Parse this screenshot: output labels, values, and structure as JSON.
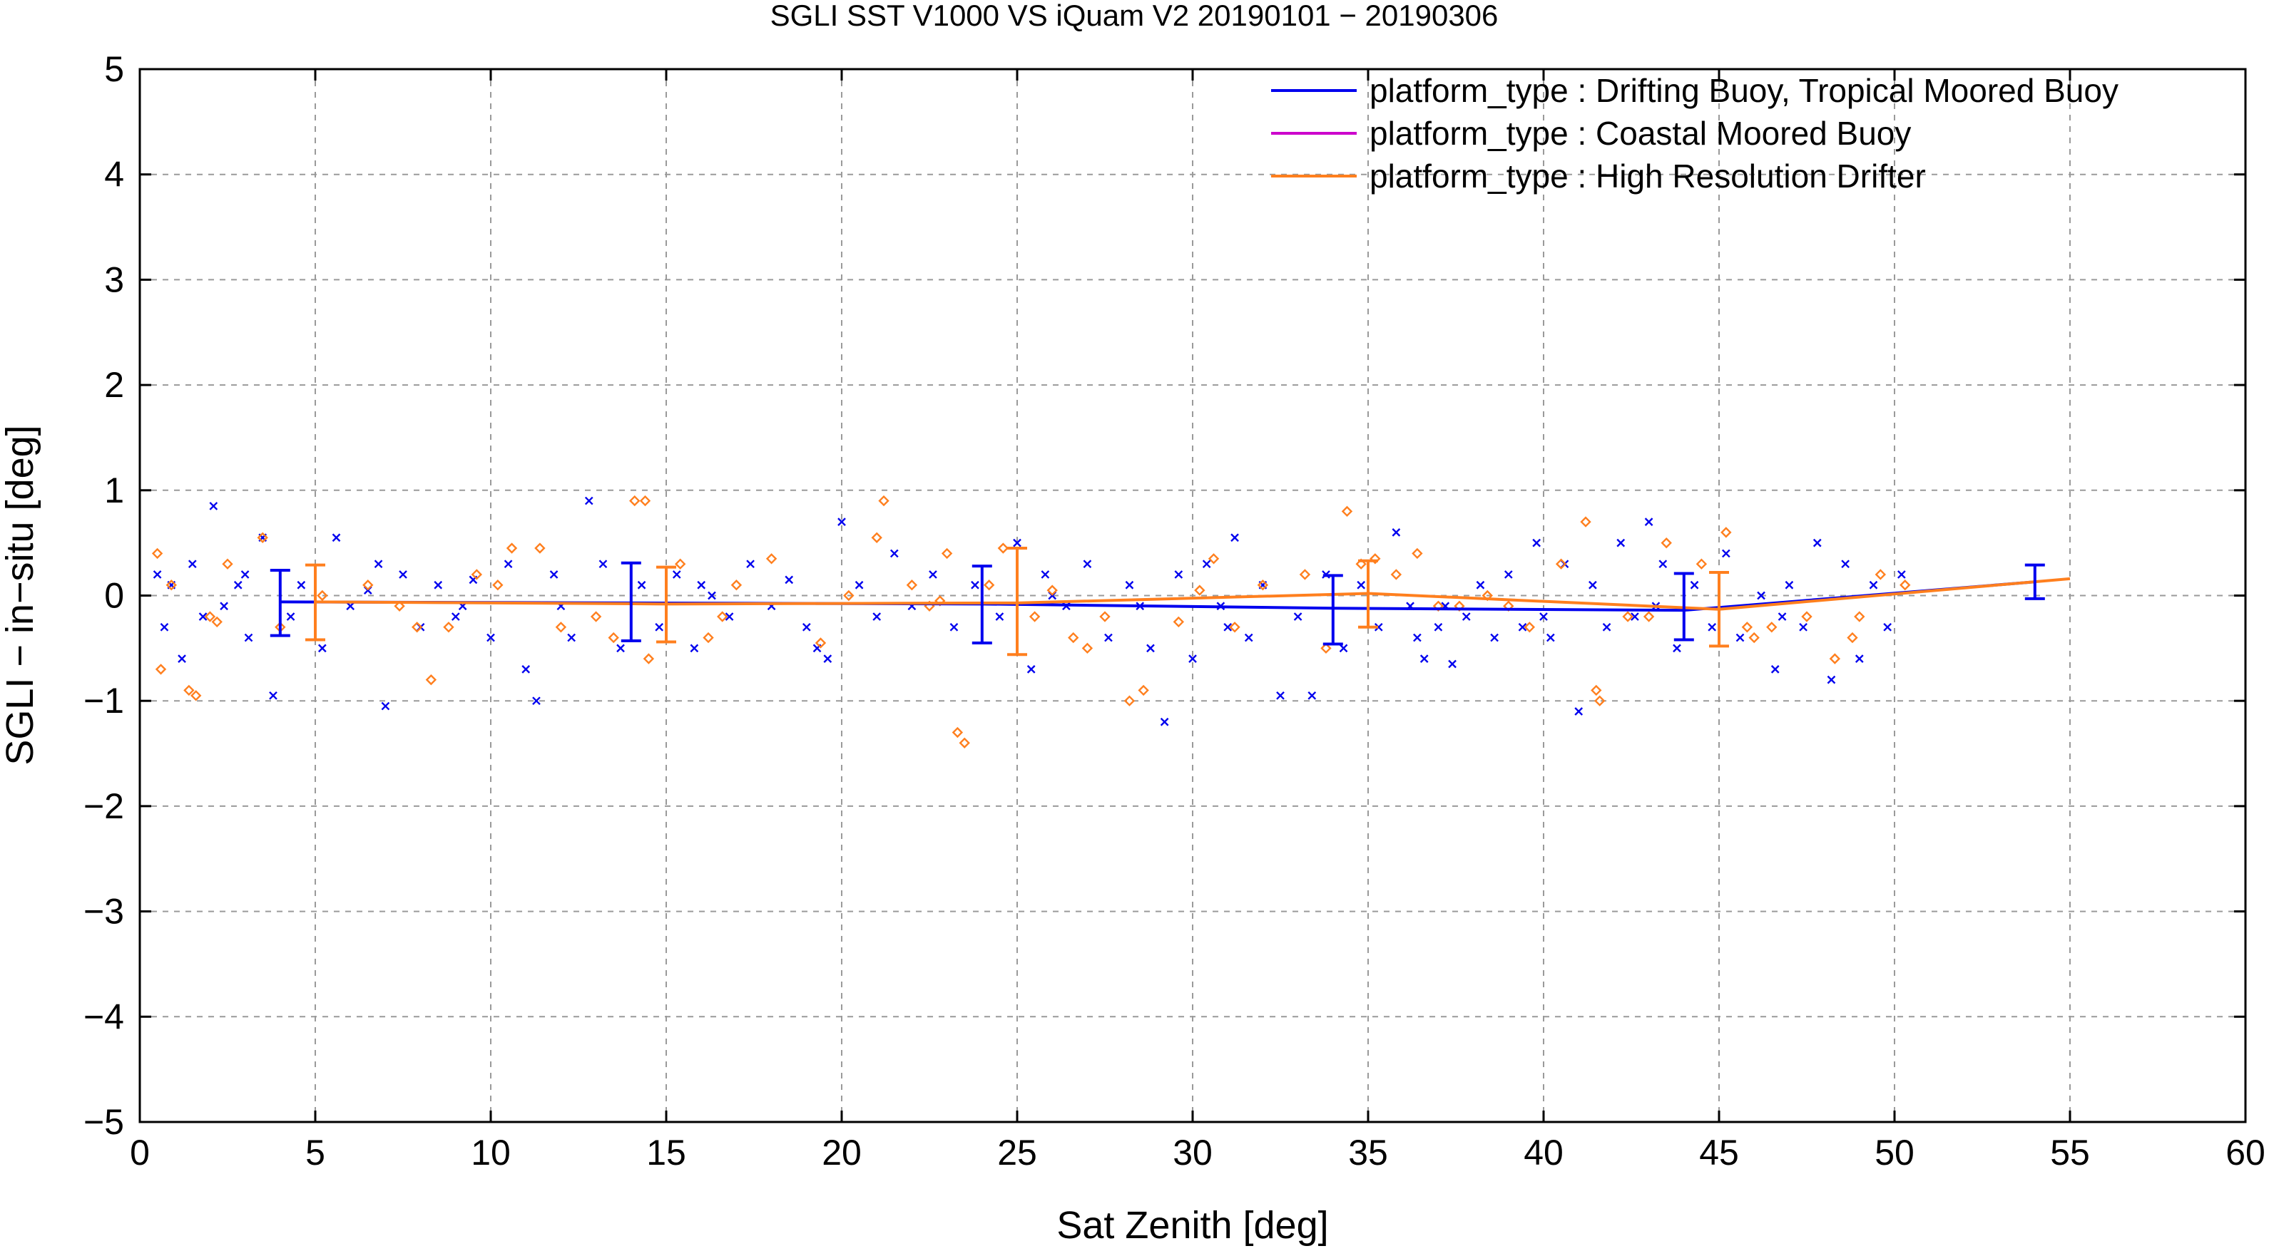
{
  "chart_data": {
    "type": "scatter",
    "title": "SGLI SST V1000 VS iQuam V2 20190101 − 20190306",
    "xlabel": "Sat Zenith [deg]",
    "ylabel": "SGLI − in−situ [deg]",
    "xlim": [
      0,
      60
    ],
    "ylim": [
      -5,
      5
    ],
    "x_ticks": [
      "0",
      "5",
      "10",
      "15",
      "20",
      "25",
      "30",
      "35",
      "40",
      "45",
      "50",
      "55",
      "60"
    ],
    "y_ticks": [
      "−5",
      "−4",
      "−3",
      "−2",
      "−1",
      "0",
      "1",
      "2",
      "3",
      "4",
      "5"
    ],
    "grid": true,
    "legend_position": "top-right",
    "series": [
      {
        "name": "platform_type : Drifting Buoy, Tropical Moored Buoy",
        "color": "#0000ee",
        "marker": "x",
        "mean_line": [
          [
            4,
            -0.06
          ],
          [
            14,
            -0.07
          ],
          [
            24,
            -0.08
          ],
          [
            34,
            -0.12
          ],
          [
            44,
            -0.14
          ],
          [
            54,
            0.13
          ]
        ],
        "error_bars": [
          [
            4,
            -0.38,
            0.24
          ],
          [
            14,
            -0.43,
            0.31
          ],
          [
            24,
            -0.45,
            0.28
          ],
          [
            34,
            -0.46,
            0.19
          ],
          [
            44,
            -0.42,
            0.21
          ],
          [
            54,
            -0.03,
            0.29
          ]
        ],
        "points": [
          [
            0.5,
            0.2
          ],
          [
            0.7,
            -0.3
          ],
          [
            0.9,
            0.1
          ],
          [
            1.2,
            -0.6
          ],
          [
            1.5,
            0.3
          ],
          [
            1.8,
            -0.2
          ],
          [
            2.1,
            0.85
          ],
          [
            2.4,
            -0.1
          ],
          [
            2.8,
            0.1
          ],
          [
            3.1,
            -0.4
          ],
          [
            3.5,
            0.55
          ],
          [
            3.8,
            -0.95
          ],
          [
            4.3,
            -0.2
          ],
          [
            4.6,
            0.1
          ],
          [
            5.2,
            -0.5
          ],
          [
            5.6,
            0.55
          ],
          [
            6.0,
            -0.1
          ],
          [
            6.5,
            0.05
          ],
          [
            7.0,
            -1.05
          ],
          [
            7.5,
            0.2
          ],
          [
            8.0,
            -0.3
          ],
          [
            8.5,
            0.1
          ],
          [
            9.0,
            -0.2
          ],
          [
            9.5,
            0.15
          ],
          [
            10.0,
            -0.4
          ],
          [
            10.5,
            0.3
          ],
          [
            11.0,
            -0.7
          ],
          [
            11.3,
            -1.0
          ],
          [
            11.8,
            0.2
          ],
          [
            12.3,
            -0.4
          ],
          [
            12.8,
            0.9
          ],
          [
            13.2,
            0.3
          ],
          [
            13.7,
            -0.5
          ],
          [
            14.3,
            0.1
          ],
          [
            14.8,
            -0.3
          ],
          [
            15.3,
            0.2
          ],
          [
            15.8,
            -0.5
          ],
          [
            16.3,
            0.0
          ],
          [
            16.8,
            -0.2
          ],
          [
            17.4,
            0.3
          ],
          [
            18.0,
            -0.1
          ],
          [
            18.5,
            0.15
          ],
          [
            19.0,
            -0.3
          ],
          [
            19.6,
            -0.6
          ],
          [
            20.0,
            0.7
          ],
          [
            20.5,
            0.1
          ],
          [
            21.0,
            -0.2
          ],
          [
            21.5,
            0.4
          ],
          [
            22.0,
            -0.1
          ],
          [
            22.6,
            0.2
          ],
          [
            23.2,
            -0.3
          ],
          [
            23.8,
            0.1
          ],
          [
            24.5,
            -0.2
          ],
          [
            25.0,
            0.5
          ],
          [
            25.4,
            -0.7
          ],
          [
            25.8,
            0.2
          ],
          [
            26.4,
            -0.1
          ],
          [
            27.0,
            0.3
          ],
          [
            27.6,
            -0.4
          ],
          [
            28.2,
            0.1
          ],
          [
            28.8,
            -0.5
          ],
          [
            29.2,
            -1.2
          ],
          [
            29.6,
            0.2
          ],
          [
            30.0,
            -0.6
          ],
          [
            30.4,
            0.3
          ],
          [
            30.8,
            -0.1
          ],
          [
            31.2,
            0.55
          ],
          [
            31.6,
            -0.4
          ],
          [
            32.0,
            0.1
          ],
          [
            32.5,
            -0.95
          ],
          [
            33.0,
            -0.2
          ],
          [
            33.4,
            -0.95
          ],
          [
            33.8,
            0.2
          ],
          [
            34.3,
            -0.5
          ],
          [
            34.8,
            0.1
          ],
          [
            35.3,
            -0.3
          ],
          [
            35.8,
            0.6
          ],
          [
            36.2,
            -0.1
          ],
          [
            36.6,
            -0.6
          ],
          [
            37.0,
            -0.3
          ],
          [
            37.4,
            -0.65
          ],
          [
            37.8,
            -0.2
          ],
          [
            38.2,
            0.1
          ],
          [
            38.6,
            -0.4
          ],
          [
            39.0,
            0.2
          ],
          [
            39.4,
            -0.3
          ],
          [
            39.8,
            0.5
          ],
          [
            40.2,
            -0.4
          ],
          [
            40.6,
            0.3
          ],
          [
            41.0,
            -1.1
          ],
          [
            41.4,
            0.1
          ],
          [
            41.8,
            -0.3
          ],
          [
            42.2,
            0.5
          ],
          [
            42.6,
            -0.2
          ],
          [
            43.0,
            0.7
          ],
          [
            43.4,
            0.3
          ],
          [
            43.8,
            -0.5
          ],
          [
            44.3,
            0.1
          ],
          [
            44.8,
            -0.3
          ],
          [
            45.2,
            0.4
          ],
          [
            45.6,
            -0.4
          ],
          [
            46.2,
            0.0
          ],
          [
            46.6,
            -0.7
          ],
          [
            47.0,
            0.1
          ],
          [
            47.4,
            -0.3
          ],
          [
            47.8,
            0.5
          ],
          [
            48.2,
            -0.8
          ],
          [
            48.6,
            0.3
          ],
          [
            49.0,
            -0.6
          ],
          [
            49.4,
            0.1
          ],
          [
            49.8,
            -0.3
          ],
          [
            50.2,
            0.2
          ],
          [
            3.0,
            0.2
          ],
          [
            6.8,
            0.3
          ],
          [
            9.2,
            -0.1
          ],
          [
            12.0,
            -0.1
          ],
          [
            16.0,
            0.1
          ],
          [
            19.3,
            -0.5
          ],
          [
            26.0,
            0.0
          ],
          [
            28.5,
            -0.1
          ],
          [
            31.0,
            -0.3
          ],
          [
            36.4,
            -0.4
          ],
          [
            37.2,
            -0.1
          ],
          [
            40.0,
            -0.2
          ],
          [
            43.2,
            -0.1
          ],
          [
            46.8,
            -0.2
          ]
        ]
      },
      {
        "name": "platform_type : Coastal Moored Buoy",
        "color": "#cc00cc",
        "marker": "+",
        "points": []
      },
      {
        "name": "platform_type : High Resolution Drifter",
        "color": "#ff7f1e",
        "marker": "diamond",
        "mean_line": [
          [
            5,
            -0.06
          ],
          [
            15,
            -0.08
          ],
          [
            25,
            -0.07
          ],
          [
            35,
            0.02
          ],
          [
            45,
            -0.13
          ],
          [
            55,
            0.16
          ]
        ],
        "error_bars": [
          [
            5,
            -0.42,
            0.29
          ],
          [
            15,
            -0.44,
            0.27
          ],
          [
            25,
            -0.56,
            0.45
          ],
          [
            35,
            -0.3,
            0.33
          ],
          [
            45,
            -0.48,
            0.22
          ]
        ],
        "points": [
          [
            0.5,
            0.4
          ],
          [
            0.6,
            -0.7
          ],
          [
            0.9,
            0.1
          ],
          [
            1.4,
            -0.9
          ],
          [
            1.6,
            -0.95
          ],
          [
            2.0,
            -0.2
          ],
          [
            2.5,
            0.3
          ],
          [
            3.5,
            0.55
          ],
          [
            4.0,
            -0.3
          ],
          [
            6.5,
            0.1
          ],
          [
            7.4,
            -0.1
          ],
          [
            8.3,
            -0.8
          ],
          [
            8.8,
            -0.3
          ],
          [
            9.6,
            0.2
          ],
          [
            10.6,
            0.45
          ],
          [
            11.4,
            0.45
          ],
          [
            12.0,
            -0.3
          ],
          [
            13.5,
            -0.4
          ],
          [
            14.1,
            0.9
          ],
          [
            14.4,
            0.9
          ],
          [
            14.5,
            -0.6
          ],
          [
            15.4,
            0.3
          ],
          [
            16.2,
            -0.4
          ],
          [
            17.0,
            0.1
          ],
          [
            18.0,
            0.35
          ],
          [
            19.4,
            -0.45
          ],
          [
            21.0,
            0.55
          ],
          [
            21.2,
            0.9
          ],
          [
            22.0,
            0.1
          ],
          [
            22.5,
            -0.1
          ],
          [
            23.0,
            0.4
          ],
          [
            23.3,
            -1.3
          ],
          [
            23.5,
            -1.4
          ],
          [
            24.2,
            0.1
          ],
          [
            24.6,
            0.45
          ],
          [
            25.5,
            -0.2
          ],
          [
            26.0,
            0.05
          ],
          [
            26.6,
            -0.4
          ],
          [
            27.5,
            -0.2
          ],
          [
            28.2,
            -1.0
          ],
          [
            28.6,
            -0.9
          ],
          [
            29.6,
            -0.25
          ],
          [
            30.6,
            0.35
          ],
          [
            31.2,
            -0.3
          ],
          [
            32.0,
            0.1
          ],
          [
            33.2,
            0.2
          ],
          [
            33.8,
            -0.5
          ],
          [
            34.4,
            0.8
          ],
          [
            34.8,
            0.3
          ],
          [
            35.2,
            0.35
          ],
          [
            35.8,
            0.2
          ],
          [
            36.4,
            0.4
          ],
          [
            37.6,
            -0.1
          ],
          [
            38.4,
            0.0
          ],
          [
            39.0,
            -0.1
          ],
          [
            39.6,
            -0.3
          ],
          [
            40.5,
            0.3
          ],
          [
            41.2,
            0.7
          ],
          [
            41.5,
            -0.9
          ],
          [
            41.6,
            -1.0
          ],
          [
            42.4,
            -0.2
          ],
          [
            43.5,
            0.5
          ],
          [
            44.5,
            0.3
          ],
          [
            45.2,
            0.6
          ],
          [
            45.8,
            -0.3
          ],
          [
            46.5,
            -0.3
          ],
          [
            47.5,
            -0.2
          ],
          [
            48.3,
            -0.6
          ],
          [
            49.0,
            -0.2
          ],
          [
            49.6,
            0.2
          ],
          [
            50.3,
            0.1
          ],
          [
            2.2,
            -0.25
          ],
          [
            5.2,
            0.0
          ],
          [
            7.9,
            -0.3
          ],
          [
            10.2,
            0.1
          ],
          [
            13.0,
            -0.2
          ],
          [
            16.6,
            -0.2
          ],
          [
            20.2,
            0.0
          ],
          [
            22.8,
            -0.05
          ],
          [
            27.0,
            -0.5
          ],
          [
            30.2,
            0.05
          ],
          [
            37.0,
            -0.1
          ],
          [
            43.0,
            -0.2
          ],
          [
            46.0,
            -0.4
          ],
          [
            48.8,
            -0.4
          ]
        ]
      }
    ]
  }
}
